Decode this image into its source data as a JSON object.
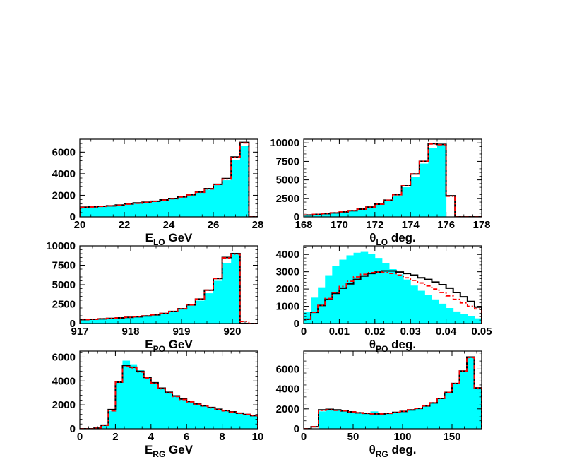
{
  "colors": {
    "hist_fill": "#00ffff",
    "line_black": "#000000",
    "line_red": "#ff0000"
  },
  "chart_data": [
    {
      "type": "histogram",
      "xlabel": "E",
      "xlabel_sub": "LO",
      "xlabel_unit": "GeV",
      "xlim": [
        20,
        28
      ],
      "ylim": [
        0,
        7200
      ],
      "xticks": [
        "20",
        "22",
        "24",
        "26",
        "28"
      ],
      "yticks": [
        "0",
        "2000",
        "4000",
        "6000"
      ],
      "bin_edges": [
        20,
        20.4,
        20.8,
        21.2,
        21.6,
        22,
        22.4,
        22.8,
        23.2,
        23.6,
        24,
        24.4,
        24.8,
        25.2,
        25.6,
        26,
        26.4,
        26.8,
        27.2,
        27.6,
        28
      ],
      "series": [
        {
          "style": "fill",
          "values": [
            800,
            870,
            940,
            1010,
            1080,
            1150,
            1230,
            1320,
            1420,
            1530,
            1660,
            1810,
            2000,
            2230,
            2530,
            2950,
            3400,
            5300,
            6600,
            60
          ]
        },
        {
          "style": "solid",
          "values": [
            900,
            930,
            980,
            1020,
            1100,
            1200,
            1290,
            1360,
            1450,
            1570,
            1700,
            1860,
            2050,
            2300,
            2620,
            3020,
            3550,
            5550,
            6900,
            0
          ]
        },
        {
          "style": "dashed",
          "values": [
            880,
            920,
            970,
            1020,
            1090,
            1180,
            1260,
            1340,
            1440,
            1550,
            1680,
            1840,
            2030,
            2280,
            2590,
            3000,
            3500,
            5500,
            6850,
            0
          ]
        }
      ]
    },
    {
      "type": "histogram",
      "xlabel": "θ",
      "xlabel_sub": "LO",
      "xlabel_unit": "deg.",
      "xlim": [
        168,
        178
      ],
      "ylim": [
        0,
        10500
      ],
      "xticks": [
        "168",
        "170",
        "172",
        "174",
        "176",
        "178"
      ],
      "yticks": [
        "0",
        "2500",
        "5000",
        "7500",
        "10000"
      ],
      "bin_edges": [
        168,
        168.5,
        169,
        169.5,
        170,
        170.5,
        171,
        171.5,
        172,
        172.5,
        173,
        173.5,
        174,
        174.5,
        175,
        175.5,
        176,
        176.5,
        177,
        177.5,
        178
      ],
      "series": [
        {
          "style": "fill",
          "values": [
            230,
            330,
            420,
            520,
            660,
            800,
            1000,
            1250,
            1650,
            2100,
            2800,
            4000,
            5400,
            7200,
            9300,
            9700,
            50,
            0,
            0,
            0
          ]
        },
        {
          "style": "solid",
          "values": [
            250,
            340,
            430,
            540,
            680,
            840,
            1050,
            1320,
            1720,
            2250,
            3000,
            4200,
            5800,
            7500,
            9900,
            9800,
            2850,
            0,
            0,
            0
          ]
        },
        {
          "style": "dashed",
          "values": [
            250,
            340,
            430,
            540,
            680,
            840,
            1050,
            1320,
            1720,
            2250,
            3000,
            4200,
            5800,
            7500,
            9850,
            9750,
            2800,
            0,
            0,
            0
          ]
        }
      ]
    },
    {
      "type": "histogram",
      "xlabel": "E",
      "xlabel_sub": "PO",
      "xlabel_unit": "GeV",
      "xlim": [
        917,
        920.5
      ],
      "ylim": [
        0,
        10000
      ],
      "xticks": [
        "917",
        "918",
        "919",
        "920"
      ],
      "yticks": [
        "0",
        "2500",
        "5000",
        "7500",
        "10000"
      ],
      "bin_edges": [
        917,
        917.175,
        917.35,
        917.525,
        917.7,
        917.875,
        918.05,
        918.225,
        918.4,
        918.575,
        918.75,
        918.925,
        919.1,
        919.275,
        919.45,
        919.625,
        919.8,
        919.975,
        920.15,
        920.325,
        920.5
      ],
      "series": [
        {
          "style": "fill",
          "values": [
            480,
            520,
            570,
            630,
            700,
            770,
            850,
            950,
            1080,
            1250,
            1480,
            1800,
            2300,
            2950,
            3900,
            5500,
            7800,
            9100,
            100,
            0
          ]
        },
        {
          "style": "solid",
          "values": [
            500,
            550,
            600,
            660,
            730,
            800,
            880,
            980,
            1120,
            1300,
            1560,
            1900,
            2400,
            3150,
            4300,
            5800,
            8500,
            9000,
            0,
            0
          ]
        },
        {
          "style": "dashed",
          "values": [
            500,
            550,
            600,
            660,
            730,
            800,
            880,
            980,
            1120,
            1300,
            1560,
            1900,
            2400,
            3150,
            4300,
            5800,
            8450,
            8950,
            250,
            0
          ]
        }
      ]
    },
    {
      "type": "histogram",
      "xlabel": "θ",
      "xlabel_sub": "PO",
      "xlabel_unit": "deg.",
      "xlim": [
        0,
        0.05
      ],
      "ylim": [
        0,
        4500
      ],
      "xticks": [
        "0",
        "0.01",
        "0.02",
        "0.03",
        "0.04",
        "0.05"
      ],
      "yticks": [
        "0",
        "1000",
        "2000",
        "3000",
        "4000"
      ],
      "bin_edges": [
        0,
        0.002,
        0.004,
        0.006,
        0.008,
        0.01,
        0.012,
        0.014,
        0.016,
        0.018,
        0.02,
        0.022,
        0.024,
        0.026,
        0.028,
        0.03,
        0.032,
        0.034,
        0.036,
        0.038,
        0.04,
        0.042,
        0.044,
        0.046,
        0.048,
        0.05
      ],
      "series": [
        {
          "style": "fill",
          "values": [
            650,
            1500,
            2100,
            2800,
            3350,
            3700,
            3950,
            4100,
            4150,
            4050,
            3800,
            3500,
            3150,
            2850,
            2550,
            2200,
            1900,
            1650,
            1400,
            1150,
            900,
            700,
            550,
            420,
            300
          ]
        },
        {
          "style": "solid",
          "values": [
            250,
            650,
            1050,
            1400,
            1750,
            2050,
            2300,
            2550,
            2750,
            2900,
            2980,
            3050,
            3050,
            2980,
            2900,
            2800,
            2650,
            2550,
            2400,
            2250,
            2050,
            1800,
            1550,
            1280,
            950
          ]
        },
        {
          "style": "dashed",
          "values": [
            250,
            650,
            1050,
            1450,
            1800,
            2150,
            2450,
            2700,
            2850,
            2950,
            2980,
            2950,
            2900,
            2800,
            2650,
            2500,
            2350,
            2180,
            2000,
            1800,
            1600,
            1400,
            1200,
            1000,
            850
          ]
        }
      ]
    },
    {
      "type": "histogram",
      "xlabel": "E",
      "xlabel_sub": "RG",
      "xlabel_unit": "GeV",
      "xlim": [
        0,
        10
      ],
      "ylim": [
        0,
        6500
      ],
      "xticks": [
        "0",
        "2",
        "4",
        "6",
        "8",
        "10"
      ],
      "yticks": [
        "0",
        "2000",
        "4000",
        "6000"
      ],
      "bin_edges": [
        0,
        0.4,
        0.8,
        1.2,
        1.6,
        2,
        2.4,
        2.8,
        3.2,
        3.6,
        4,
        4.4,
        4.8,
        5.2,
        5.6,
        6,
        6.4,
        6.8,
        7.2,
        7.6,
        8,
        8.4,
        8.8,
        9.2,
        9.6,
        10
      ],
      "series": [
        {
          "style": "fill",
          "values": [
            0,
            0,
            50,
            350,
            1500,
            4000,
            5700,
            5400,
            4900,
            4300,
            3800,
            3350,
            3000,
            2700,
            2450,
            2250,
            2050,
            1900,
            1750,
            1600,
            1500,
            1400,
            1280,
            1180,
            1080
          ]
        },
        {
          "style": "solid",
          "values": [
            0,
            0,
            50,
            300,
            1600,
            3900,
            5300,
            5150,
            4800,
            4300,
            3850,
            3400,
            3050,
            2750,
            2500,
            2280,
            2080,
            1930,
            1780,
            1630,
            1530,
            1420,
            1310,
            1200,
            1100
          ]
        },
        {
          "style": "dashed",
          "values": [
            0,
            0,
            50,
            300,
            1500,
            3900,
            5200,
            5100,
            4750,
            4250,
            3800,
            3350,
            3000,
            2700,
            2450,
            2250,
            2050,
            1900,
            1750,
            1600,
            1500,
            1400,
            1300,
            1200,
            1100
          ]
        }
      ]
    },
    {
      "type": "histogram",
      "xlabel": "θ",
      "xlabel_sub": "RG",
      "xlabel_unit": "deg.",
      "xlim": [
        0,
        180
      ],
      "ylim": [
        0,
        7800
      ],
      "xticks": [
        "0",
        "50",
        "100",
        "150"
      ],
      "yticks": [
        "0",
        "2000",
        "4000",
        "6000"
      ],
      "bin_edges": [
        0,
        7.5,
        15,
        22.5,
        30,
        37.5,
        45,
        52.5,
        60,
        67.5,
        75,
        82.5,
        90,
        97.5,
        105,
        112.5,
        120,
        127.5,
        135,
        142.5,
        150,
        157.5,
        165,
        172.5,
        180
      ],
      "series": [
        {
          "style": "fill",
          "values": [
            0,
            0,
            1750,
            1900,
            1850,
            1800,
            1700,
            1650,
            1600,
            1750,
            1550,
            1500,
            1600,
            1700,
            1850,
            2000,
            2250,
            2600,
            3000,
            3650,
            4600,
            5800,
            7150,
            4100
          ]
        },
        {
          "style": "solid",
          "values": [
            0,
            200,
            1900,
            1950,
            1900,
            1800,
            1700,
            1600,
            1550,
            1500,
            1500,
            1550,
            1650,
            1750,
            1900,
            2050,
            2300,
            2600,
            3050,
            3650,
            4550,
            5800,
            7200,
            4100
          ]
        },
        {
          "style": "dashed",
          "values": [
            0,
            200,
            1850,
            1900,
            1850,
            1800,
            1700,
            1600,
            1550,
            1500,
            1500,
            1550,
            1650,
            1750,
            1900,
            2050,
            2300,
            2600,
            3050,
            3650,
            4550,
            5800,
            7150,
            4100
          ]
        }
      ]
    }
  ]
}
